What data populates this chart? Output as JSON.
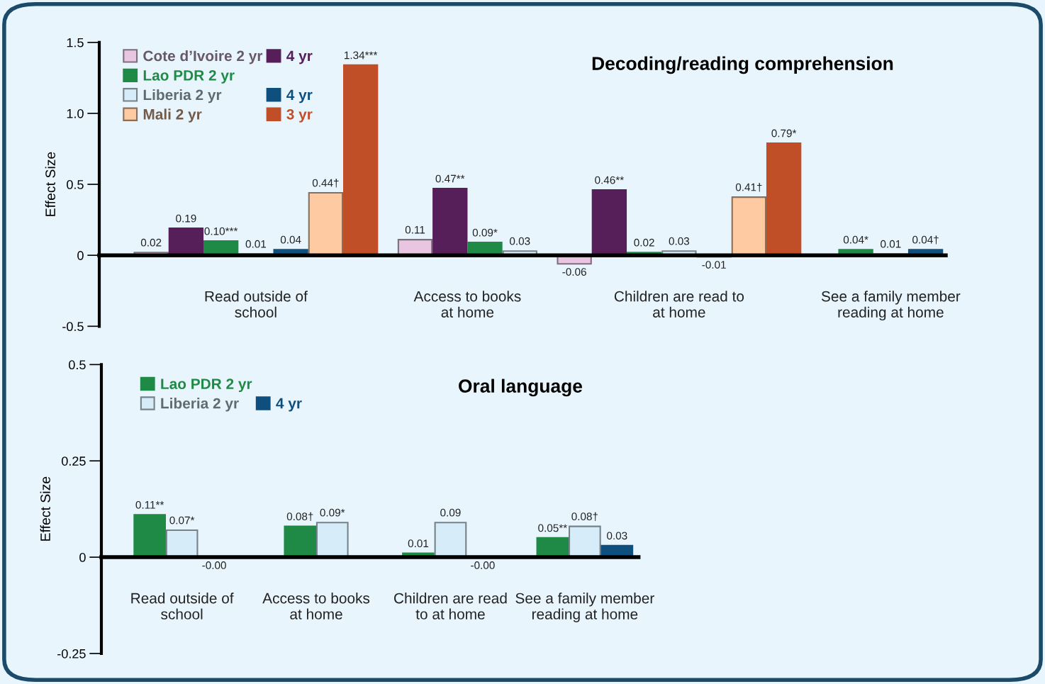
{
  "chart_data": [
    {
      "type": "bar",
      "title": "Decoding/reading comprehension",
      "ylabel": "Effect Size",
      "categories": [
        "Read outside of\nschool",
        "Access to books\nat home",
        "Children are read to\nat home",
        "See a family member\nreading at home"
      ],
      "series": [
        {
          "name": "Cote d’Ivoire 2 yr",
          "color": "#e8c6e2",
          "values": [
            0.02,
            0.11,
            -0.06,
            null
          ],
          "value_labels": [
            "0.02",
            "0.11",
            "-0.06",
            null
          ]
        },
        {
          "name": "4 yr",
          "color": "#561f5a",
          "values": [
            0.19,
            0.47,
            0.46,
            null
          ],
          "value_labels": [
            "0.19",
            "0.47**",
            "0.46**",
            null
          ]
        },
        {
          "name": "Lao PDR 2 yr",
          "color": "#1e8a46",
          "values": [
            0.1,
            0.09,
            0.02,
            0.04
          ],
          "value_labels": [
            "0.10***",
            "0.09*",
            "0.02",
            "0.04*"
          ]
        },
        {
          "name": "Liberia 2 yr",
          "color": "#d6edf9",
          "values": [
            0.01,
            0.03,
            0.03,
            0.01
          ],
          "value_labels": [
            "0.01",
            "0.03",
            "0.03",
            "0.01"
          ]
        },
        {
          "name": "4 yr",
          "color": "#0e4f7e",
          "values": [
            0.04,
            null,
            -0.01,
            0.04
          ],
          "value_labels": [
            "0.04",
            null,
            "-0.01",
            "0.04†"
          ]
        },
        {
          "name": "Mali 2 yr",
          "color": "#fdcaa2",
          "values": [
            0.44,
            null,
            0.41,
            null
          ],
          "value_labels": [
            "0.44†",
            null,
            "0.41†",
            null
          ]
        },
        {
          "name": "3 yr",
          "color": "#c04f28",
          "values": [
            1.34,
            null,
            0.79,
            null
          ],
          "value_labels": [
            "1.34***",
            null,
            "0.79*",
            null
          ]
        }
      ],
      "ylim": [
        -0.5,
        1.5
      ],
      "yticks": [
        -0.5,
        0,
        0.5,
        {
          "value": 1.0,
          "label": "1.0"
        },
        1.5
      ],
      "grid": false,
      "legend": "top left"
    },
    {
      "type": "bar",
      "title": "Oral language",
      "ylabel": "Effect Size",
      "categories": [
        "Read outside of\nschool",
        "Access to books\nat home",
        "Children are read\nto at home",
        "See a family member\nreading at home"
      ],
      "series": [
        {
          "name": "Lao PDR 2 yr",
          "color": "#1e8a46",
          "values": [
            0.11,
            0.08,
            0.01,
            0.05
          ],
          "value_labels": [
            "0.11**",
            "0.08†",
            "0.01",
            "0.05**"
          ]
        },
        {
          "name": "Liberia 2 yr",
          "color": "#d6edf9",
          "values": [
            0.07,
            0.09,
            0.09,
            0.08
          ],
          "value_labels": [
            "0.07*",
            "0.09*",
            "0.09",
            "0.08†"
          ]
        },
        {
          "name": "4 yr",
          "color": "#0e4f7e",
          "values": [
            0,
            null,
            0,
            0.03
          ],
          "value_labels": [
            "-0.00",
            null,
            "-0.00",
            "0.03"
          ]
        }
      ],
      "ylim": [
        -0.25,
        0.5
      ],
      "yticks": [
        -0.25,
        0,
        0.25,
        0.5
      ],
      "grid": false,
      "legend": "top left"
    }
  ]
}
